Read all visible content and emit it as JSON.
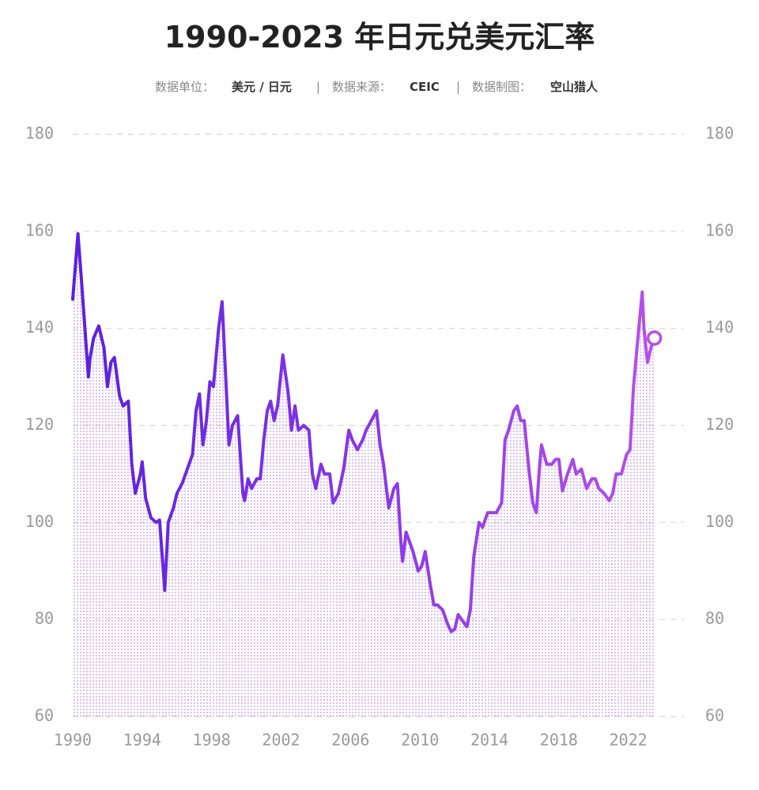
{
  "chart_data": {
    "type": "line",
    "title": "1990-2023 年日元兑美元汇率",
    "subtitle": {
      "unit_label": "数据单位：",
      "unit": "美元 / 日元",
      "separator": "|",
      "source_label": "数据来源：",
      "source": "CEIC",
      "author_label": "数据制图：",
      "author": "空山猎人"
    },
    "x": [
      1990.0,
      1990.3,
      1990.5,
      1990.7,
      1990.9,
      1991.0,
      1991.2,
      1991.5,
      1991.8,
      1992.0,
      1992.2,
      1992.4,
      1992.7,
      1992.9,
      1993.2,
      1993.4,
      1993.6,
      1993.9,
      1994.0,
      1994.2,
      1994.5,
      1994.8,
      1995.0,
      1995.3,
      1995.5,
      1995.8,
      1996.0,
      1996.3,
      1996.6,
      1996.9,
      1997.1,
      1997.3,
      1997.5,
      1997.7,
      1997.9,
      1998.1,
      1998.4,
      1998.6,
      1998.8,
      1999.0,
      1999.2,
      1999.5,
      1999.8,
      1999.9,
      2000.1,
      2000.3,
      2000.6,
      2000.8,
      2001.0,
      2001.2,
      2001.4,
      2001.6,
      2001.8,
      2002.0,
      2002.1,
      2002.4,
      2002.6,
      2002.8,
      2003.0,
      2003.3,
      2003.6,
      2003.8,
      2004.0,
      2004.3,
      2004.5,
      2004.8,
      2005.0,
      2005.3,
      2005.6,
      2005.9,
      2006.1,
      2006.4,
      2006.7,
      2006.9,
      2007.2,
      2007.5,
      2007.7,
      2007.9,
      2008.2,
      2008.5,
      2008.7,
      2008.9,
      2009.0,
      2009.2,
      2009.4,
      2009.6,
      2009.9,
      2010.1,
      2010.3,
      2010.6,
      2010.8,
      2011.0,
      2011.3,
      2011.6,
      2011.8,
      2012.0,
      2012.2,
      2012.4,
      2012.7,
      2012.9,
      2013.1,
      2013.4,
      2013.6,
      2013.9,
      2014.1,
      2014.4,
      2014.7,
      2014.9,
      2015.1,
      2015.4,
      2015.6,
      2015.8,
      2016.0,
      2016.3,
      2016.5,
      2016.7,
      2016.9,
      2017.0,
      2017.3,
      2017.6,
      2017.8,
      2018.0,
      2018.2,
      2018.5,
      2018.8,
      2019.0,
      2019.3,
      2019.6,
      2019.9,
      2020.1,
      2020.3,
      2020.6,
      2020.9,
      2021.1,
      2021.3,
      2021.6,
      2021.9,
      2022.1,
      2022.3,
      2022.5,
      2022.8,
      2022.9,
      2023.1,
      2023.3,
      2023.5
    ],
    "values": [
      146,
      159.5,
      150,
      140,
      130,
      134,
      138,
      140.5,
      136,
      128,
      133,
      134,
      126,
      124,
      125,
      112,
      106,
      110,
      112.5,
      105,
      101,
      100,
      100.5,
      86,
      100,
      103,
      106,
      108,
      111,
      114,
      123,
      126.5,
      116,
      121,
      129,
      128,
      140,
      145.5,
      131,
      116,
      120,
      122,
      106,
      104.5,
      109,
      107,
      109,
      109,
      117,
      123,
      125,
      121,
      124,
      131,
      134.5,
      127,
      119,
      124,
      119,
      120,
      119,
      110,
      107,
      112,
      110,
      110,
      104,
      106,
      111,
      119,
      117,
      115,
      117,
      119,
      121,
      123,
      116,
      112,
      103,
      107,
      108,
      96,
      92,
      98,
      96,
      94,
      90,
      91,
      94,
      87,
      83,
      83,
      82,
      79,
      77.5,
      78,
      81,
      80,
      78.5,
      82,
      93,
      100,
      99,
      102,
      102,
      102,
      104,
      117,
      119,
      123,
      124,
      121,
      121,
      110,
      104,
      102,
      112,
      116,
      112,
      112,
      113,
      113,
      106.5,
      110,
      113,
      110,
      111,
      107,
      109,
      109,
      107,
      106,
      104.5,
      106,
      110,
      110,
      114,
      115,
      128,
      136,
      147.5,
      140,
      133,
      136,
      138
    ],
    "colors": [
      "#5a1fe0",
      "#b64fe9"
    ],
    "xlim": [
      1990,
      2025.2
    ],
    "ylim": [
      60,
      180
    ],
    "xticks": [
      1990,
      1994,
      1998,
      2002,
      2006,
      2010,
      2014,
      2018,
      2022
    ],
    "yticks": [
      60,
      80,
      100,
      120,
      140,
      160,
      180
    ],
    "grid": true
  }
}
